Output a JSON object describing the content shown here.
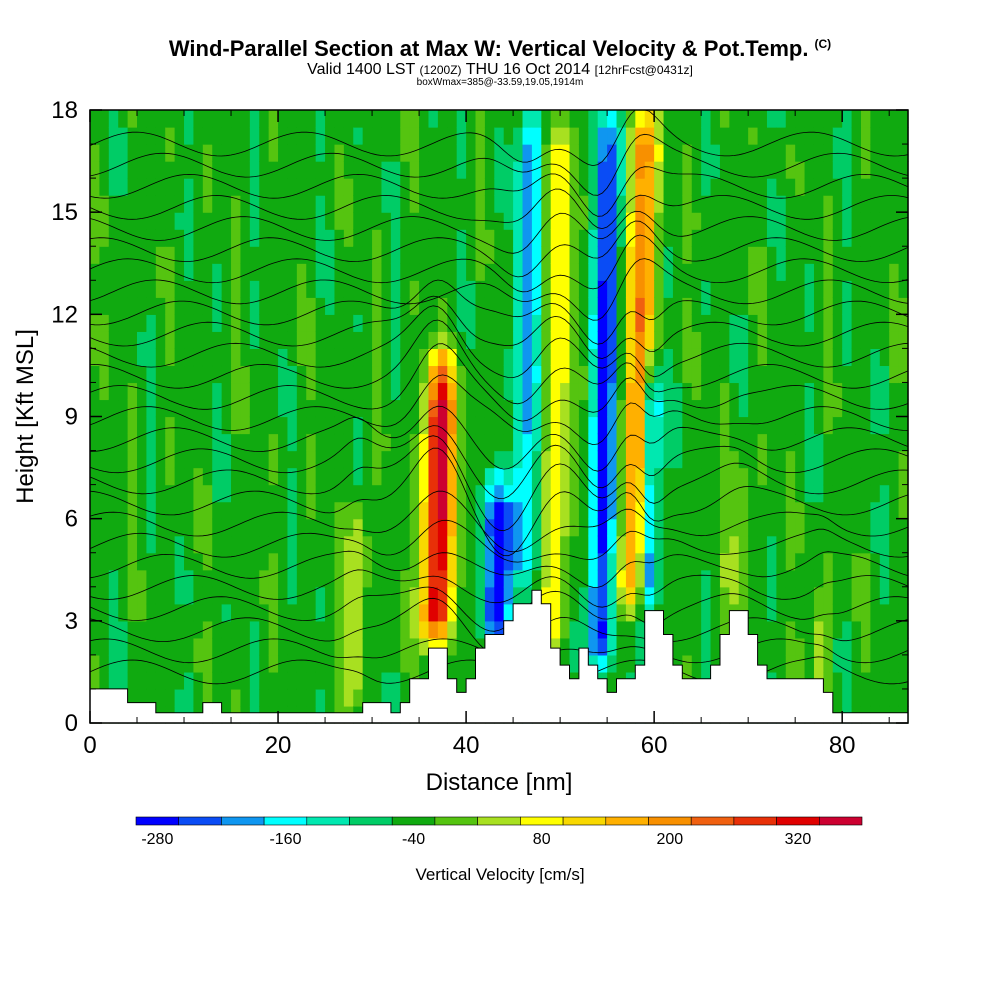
{
  "header": {
    "title": "Wind-Parallel Section at Max W: Vertical Velocity & Pot.Temp.",
    "copyright": "(C)",
    "valid_prefix": "Valid 1400 LST",
    "valid_utc": "(1200Z)",
    "valid_date": "THU 16 Oct 2014",
    "forecast_info": "[12hrFcst@0431z]",
    "box_info": "boxWmax=385@-33.59,19.05,1914m"
  },
  "chart_data": {
    "type": "heatmap",
    "title": "Wind-Parallel Section at Max W: Vertical Velocity & Pot.Temp.",
    "xlabel": "Distance [nm]",
    "ylabel": "Height [Kft MSL]",
    "xlim": [
      0,
      87
    ],
    "ylim": [
      0,
      18
    ],
    "x_ticks": [
      0,
      20,
      40,
      60,
      80
    ],
    "x_tick_labels": [
      "0",
      "20",
      "40",
      "60",
      "80"
    ],
    "y_ticks": [
      0,
      3,
      6,
      9,
      12,
      15,
      18
    ],
    "y_tick_labels": [
      "0",
      "3",
      "6",
      "9",
      "12",
      "15",
      "18"
    ],
    "background_value": -40,
    "features": [
      {
        "name": "updraft-core",
        "x": 37,
        "ybot": 2.2,
        "ytop": 10.5,
        "w": 380,
        "width_nm": 3.2
      },
      {
        "name": "downdraft-core",
        "x": 43.5,
        "ybot": 2.2,
        "ytop": 6.8,
        "w": -260,
        "width_nm": 3
      },
      {
        "name": "downdraft-band-upper",
        "x": 46,
        "ybot": 3.9,
        "ytop": 18,
        "w": -160,
        "width_nm": 3
      },
      {
        "name": "updraft-band-1",
        "x": 49.5,
        "ybot": 2,
        "ytop": 18,
        "w": 110,
        "width_nm": 3.2
      },
      {
        "name": "downdraft-band-1",
        "x": 54.5,
        "ybot": 1.5,
        "ytop": 18,
        "w": -230,
        "width_nm": 3
      },
      {
        "name": "updraft-band-2",
        "x": 58,
        "ybot": 3.2,
        "ytop": 18,
        "w": 250,
        "width_nm": 3
      },
      {
        "name": "downdraft-band-2",
        "x": 59.5,
        "ybot": 3,
        "ytop": 10.5,
        "w": -250,
        "width_nm": 2
      },
      {
        "name": "updraft-lower-left",
        "x": 28.5,
        "ybot": 0.5,
        "ytop": 6.5,
        "w": 100,
        "width_nm": 2
      },
      {
        "name": "updraft-lower-right",
        "x": 78,
        "ybot": 0.5,
        "ytop": 4,
        "w": 80,
        "width_nm": 1.5
      },
      {
        "name": "updraft-right",
        "x": 69,
        "ybot": 3,
        "ytop": 8,
        "w": 60,
        "width_nm": 2.5
      }
    ],
    "terrain": [
      [
        0,
        1
      ],
      [
        4,
        1
      ],
      [
        4,
        0.6
      ],
      [
        7,
        0.6
      ],
      [
        7,
        0.3
      ],
      [
        12,
        0.3
      ],
      [
        12,
        0.6
      ],
      [
        14,
        0.6
      ],
      [
        14,
        0.3
      ],
      [
        29,
        0.3
      ],
      [
        29,
        0.6
      ],
      [
        32,
        0.6
      ],
      [
        32,
        0.3
      ],
      [
        33,
        0.3
      ],
      [
        33,
        0.6
      ],
      [
        34,
        0.6
      ],
      [
        34,
        1.3
      ],
      [
        36,
        1.3
      ],
      [
        36,
        2.2
      ],
      [
        38,
        2.2
      ],
      [
        38,
        1.3
      ],
      [
        39,
        1.3
      ],
      [
        39,
        0.9
      ],
      [
        40,
        0.9
      ],
      [
        40,
        1.3
      ],
      [
        41,
        1.3
      ],
      [
        41,
        2.2
      ],
      [
        42,
        2.2
      ],
      [
        42,
        2.6
      ],
      [
        44,
        2.6
      ],
      [
        44,
        3
      ],
      [
        45,
        3
      ],
      [
        45,
        3.5
      ],
      [
        47,
        3.5
      ],
      [
        47,
        3.9
      ],
      [
        48,
        3.9
      ],
      [
        48,
        3.5
      ],
      [
        49,
        3.5
      ],
      [
        49,
        2.2
      ],
      [
        50,
        2.2
      ],
      [
        50,
        1.7
      ],
      [
        51,
        1.7
      ],
      [
        51,
        1.3
      ],
      [
        52,
        1.3
      ],
      [
        52,
        2.2
      ],
      [
        53,
        2.2
      ],
      [
        53,
        1.7
      ],
      [
        54,
        1.7
      ],
      [
        54,
        1.3
      ],
      [
        55,
        1.3
      ],
      [
        55,
        0.9
      ],
      [
        56,
        0.9
      ],
      [
        56,
        1.3
      ],
      [
        58,
        1.3
      ],
      [
        58,
        1.7
      ],
      [
        59,
        1.7
      ],
      [
        59,
        3.3
      ],
      [
        61,
        3.3
      ],
      [
        61,
        2.6
      ],
      [
        62,
        2.6
      ],
      [
        62,
        1.7
      ],
      [
        63,
        1.7
      ],
      [
        63,
        1.3
      ],
      [
        66,
        1.3
      ],
      [
        66,
        1.7
      ],
      [
        67,
        1.7
      ],
      [
        67,
        2.6
      ],
      [
        68,
        2.6
      ],
      [
        68,
        3.3
      ],
      [
        70,
        3.3
      ],
      [
        70,
        2.6
      ],
      [
        71,
        2.6
      ],
      [
        71,
        1.7
      ],
      [
        72,
        1.7
      ],
      [
        72,
        1.3
      ],
      [
        78,
        1.3
      ],
      [
        78,
        0.9
      ],
      [
        79,
        0.9
      ],
      [
        79,
        0.3
      ],
      [
        87,
        0.3
      ]
    ]
  },
  "colorbar": {
    "title": "Vertical Velocity [cm/s]",
    "levels": [
      -300,
      -260,
      -220,
      -180,
      -140,
      -100,
      -60,
      -20,
      20,
      60,
      100,
      140,
      180,
      220,
      260,
      300,
      340,
      380
    ],
    "tick_values": [
      -280,
      -160,
      -40,
      80,
      200,
      320
    ],
    "tick_labels": [
      "-280",
      "-160",
      "-40",
      "80",
      "200",
      "320"
    ],
    "colors": [
      "#0000ff",
      "#0a4cf5",
      "#0f96f0",
      "#00ffff",
      "#00e8b0",
      "#00cc66",
      "#10aa10",
      "#55c410",
      "#a8e020",
      "#ffff00",
      "#f8d800",
      "#ffb000",
      "#f89000",
      "#f06010",
      "#e83008",
      "#e00000",
      "#cc0030"
    ]
  }
}
